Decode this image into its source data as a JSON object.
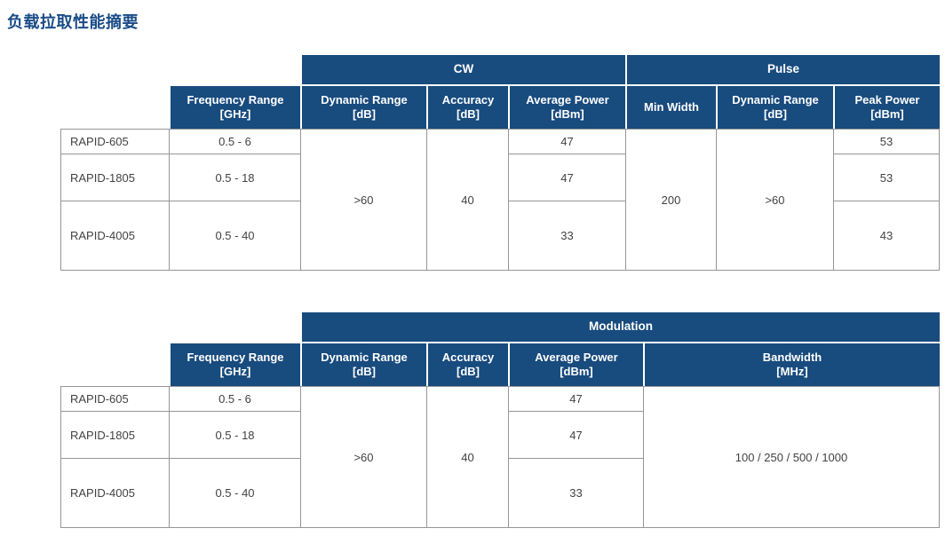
{
  "title": "负载拉取性能摘要",
  "colors": {
    "header_bg": "#184B7E",
    "title_text": "#1A4C87",
    "body_text": "#424242",
    "border": "#969696",
    "header_separator": "#FFFFFF"
  },
  "table_cw_pulse": {
    "group_headers": {
      "cw": "CW",
      "pulse": "Pulse"
    },
    "column_headers": {
      "frequency_range": "Frequency Range\n[GHz]",
      "cw_dynamic_range": "Dynamic Range\n[dB]",
      "cw_accuracy": "Accuracy\n[dB]",
      "cw_average_power": "Average Power\n[dBm]",
      "pulse_min_width": "Min Width",
      "pulse_dynamic_range": "Dynamic Range\n[dB]",
      "pulse_peak_power": "Peak Power\n[dBm]"
    },
    "rows": [
      {
        "model": "RAPID-605",
        "frequency_range": "0.5 - 6",
        "average_power": "47",
        "peak_power": "53"
      },
      {
        "model": "RAPID-1805",
        "frequency_range": "0.5 - 18",
        "average_power": "47",
        "peak_power": "53"
      },
      {
        "model": "RAPID-4005",
        "frequency_range": "0.5 - 40",
        "average_power": "33",
        "peak_power": "43"
      }
    ],
    "merged": {
      "cw_dynamic_range": ">60",
      "cw_accuracy": "40",
      "pulse_min_width": "200",
      "pulse_dynamic_range": ">60"
    }
  },
  "table_modulation": {
    "group_headers": {
      "modulation": "Modulation"
    },
    "column_headers": {
      "frequency_range": "Frequency Range\n[GHz]",
      "dynamic_range": "Dynamic Range\n[dB]",
      "accuracy": "Accuracy\n[dB]",
      "average_power": "Average Power\n[dBm]",
      "bandwidth": "Bandwidth\n[MHz]"
    },
    "rows": [
      {
        "model": "RAPID-605",
        "frequency_range": "0.5 - 6",
        "average_power": "47"
      },
      {
        "model": "RAPID-1805",
        "frequency_range": "0.5 - 18",
        "average_power": "47"
      },
      {
        "model": "RAPID-4005",
        "frequency_range": "0.5 - 40",
        "average_power": "33"
      }
    ],
    "merged": {
      "dynamic_range": ">60",
      "accuracy": "40",
      "bandwidth": "100 / 250 / 500 / 1000"
    }
  }
}
